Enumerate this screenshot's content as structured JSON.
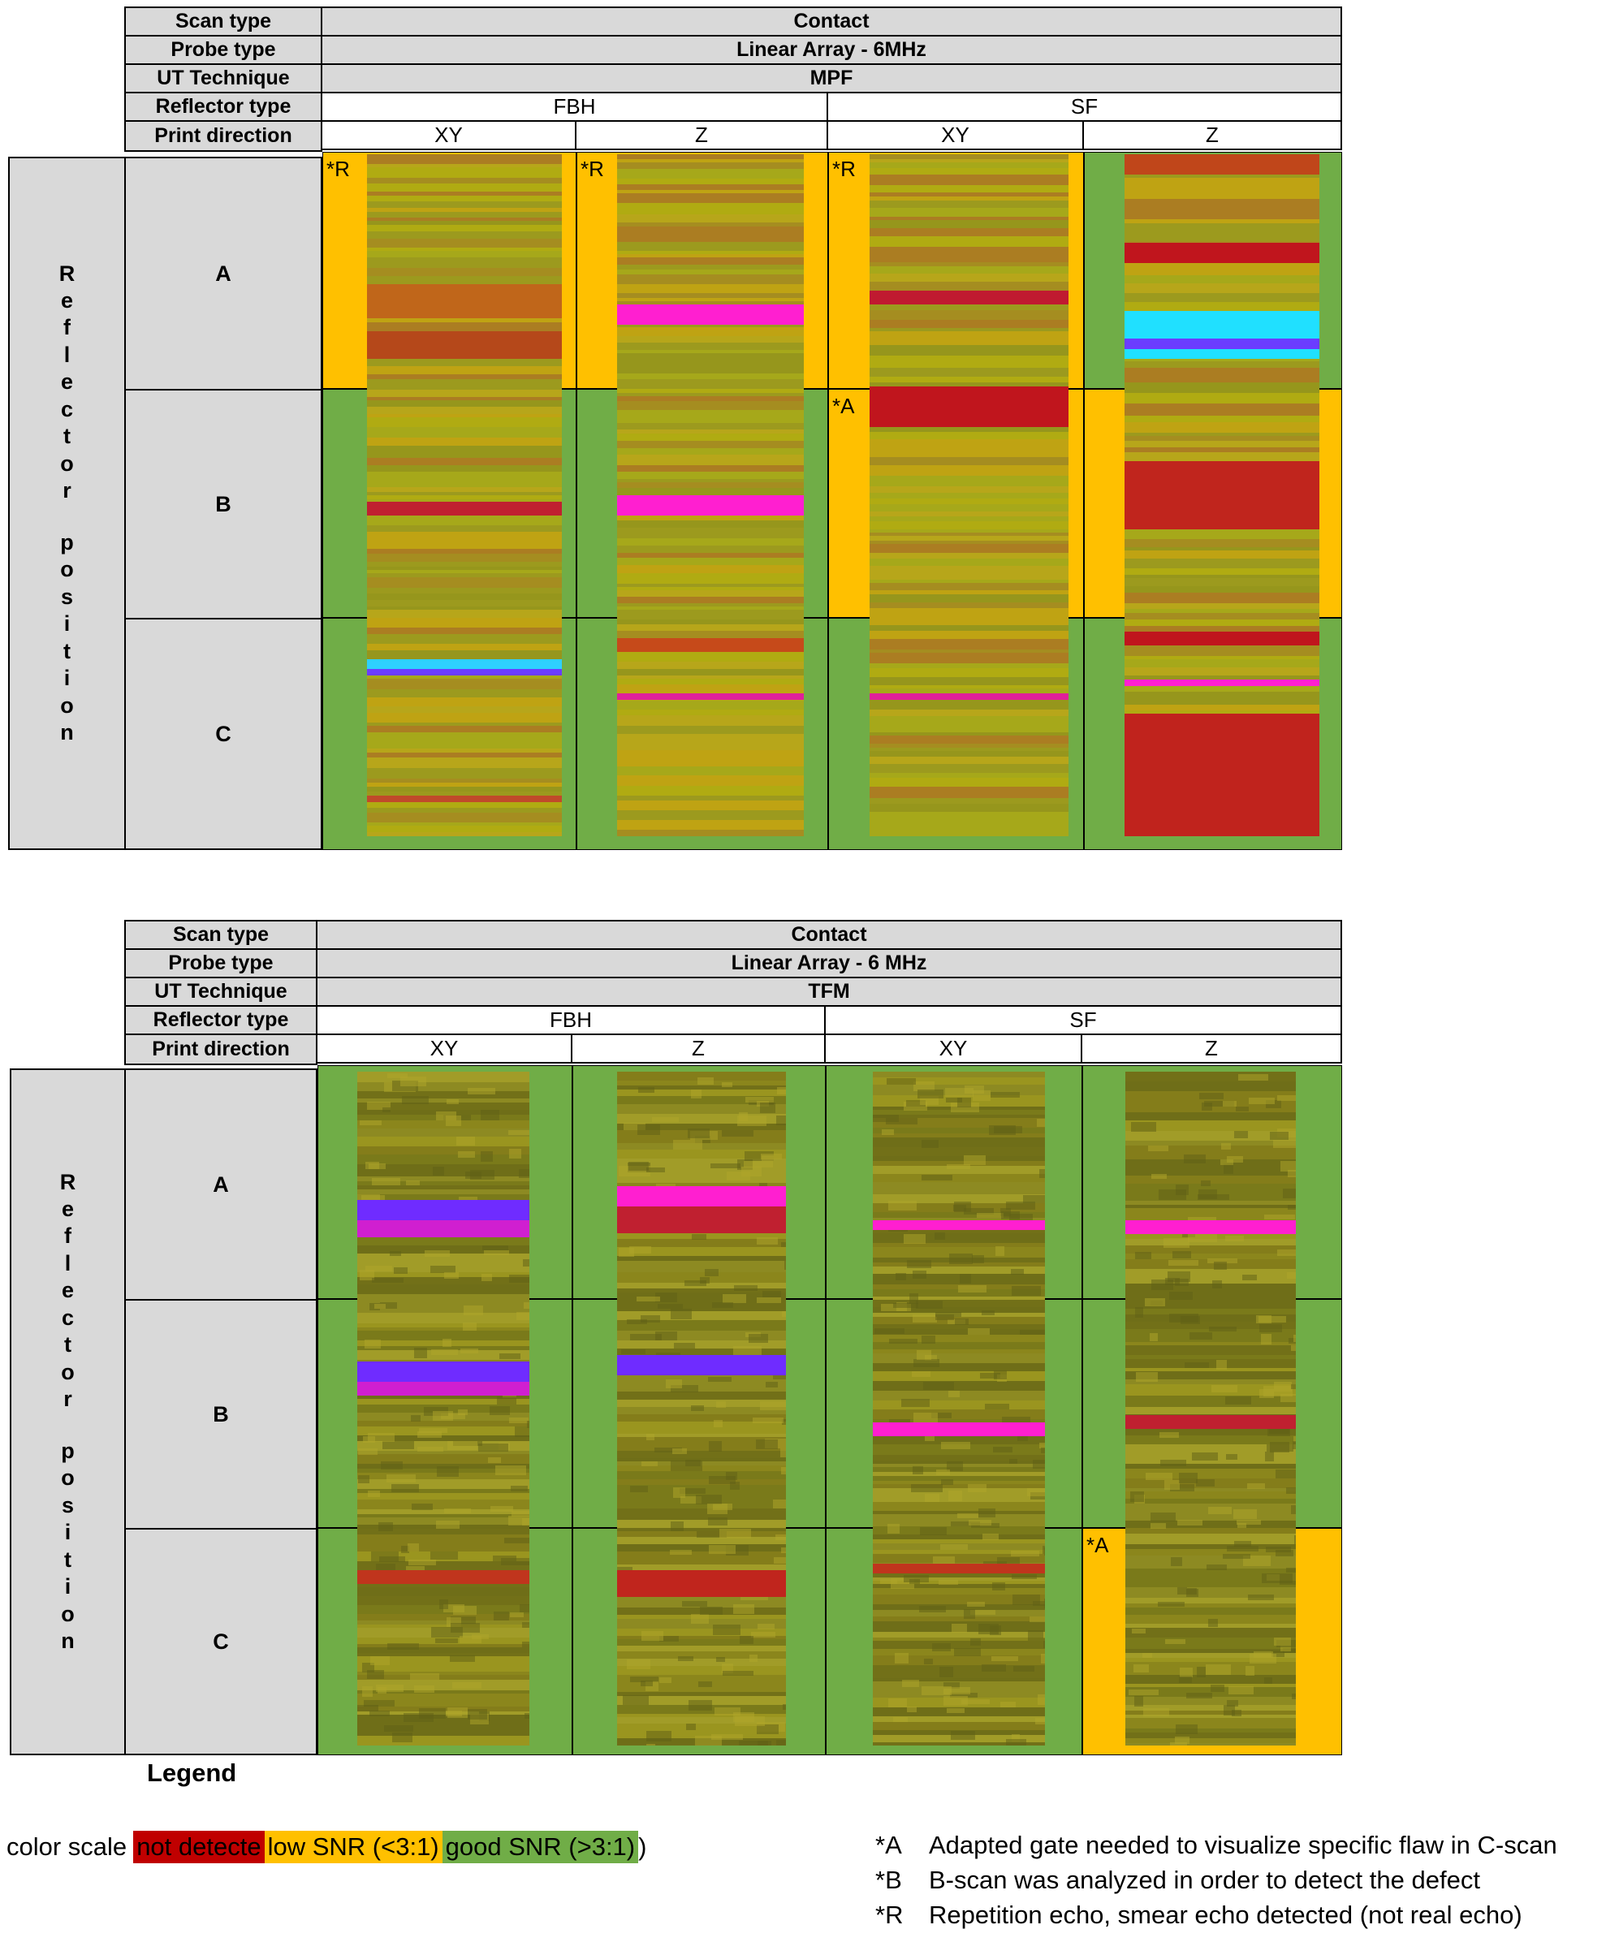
{
  "panels": [
    {
      "id": "mpf",
      "header": {
        "labels": [
          "Scan type",
          "Probe type",
          "UT Technique",
          "Reflector type",
          "Print direction"
        ],
        "scan_type": "Contact",
        "probe_type": "Linear Array - 6MHz",
        "technique": "MPF",
        "reflectors": [
          "FBH",
          "SF"
        ],
        "directions": [
          "XY",
          "Z",
          "XY",
          "Z"
        ]
      },
      "side_label_word1": [
        "R",
        "e",
        "f",
        "l",
        "e",
        "c",
        "t",
        "o",
        "r"
      ],
      "side_label_word2": [
        "p",
        "o",
        "s",
        "i",
        "t",
        "i",
        "o",
        "n"
      ],
      "rows": [
        "A",
        "B",
        "C"
      ],
      "cells": [
        [
          "low SNR (<3:1)",
          "low SNR (<3:1)",
          "low SNR (<3:1)",
          "good SNR (>3:1)"
        ],
        [
          "good SNR (>3:1)",
          "good SNR (>3:1)",
          "low SNR (<3:1)",
          "low SNR (<3:1)"
        ],
        [
          "good SNR (>3:1)",
          "good SNR (>3:1)",
          "good SNR (>3:1)",
          "good SNR (>3:1)"
        ]
      ],
      "notes": [
        {
          "row": 0,
          "col": 0,
          "text": "*R"
        },
        {
          "row": 0,
          "col": 1,
          "text": "*R"
        },
        {
          "row": 0,
          "col": 2,
          "text": "*R"
        },
        {
          "row": 1,
          "col": 2,
          "text": "*A"
        }
      ]
    },
    {
      "id": "tfm",
      "header": {
        "labels": [
          "Scan type",
          "Probe type",
          "UT Technique",
          "Reflector type",
          "Print direction"
        ],
        "scan_type": "Contact",
        "probe_type": "Linear Array - 6 MHz",
        "technique": "TFM",
        "reflectors": [
          "FBH",
          "SF"
        ],
        "directions": [
          "XY",
          "Z",
          "XY",
          "Z"
        ]
      },
      "side_label_word1": [
        "R",
        "e",
        "f",
        "l",
        "e",
        "c",
        "t",
        "o",
        "r"
      ],
      "side_label_word2": [
        "p",
        "o",
        "s",
        "i",
        "t",
        "i",
        "o",
        "n"
      ],
      "rows": [
        "A",
        "B",
        "C"
      ],
      "cells": [
        [
          "good SNR (>3:1)",
          "good SNR (>3:1)",
          "good SNR (>3:1)",
          "good SNR (>3:1)"
        ],
        [
          "good SNR (>3:1)",
          "good SNR (>3:1)",
          "good SNR (>3:1)",
          "good SNR (>3:1)"
        ],
        [
          "good SNR (>3:1)",
          "good SNR (>3:1)",
          "good SNR (>3:1)",
          "low SNR (<3:1)"
        ]
      ],
      "notes": [
        {
          "row": 2,
          "col": 3,
          "text": "*A"
        }
      ]
    }
  ],
  "legend": {
    "title": "Legend",
    "prefix": "color scale",
    "items": [
      {
        "label": "not detecte",
        "color": "#c00000"
      },
      {
        "label": "low SNR (<3:1)",
        "color": "#ffc000"
      },
      {
        "label": "good SNR (>3:1)",
        "color": "#70ad47"
      }
    ],
    "suffix": ")"
  },
  "footnotes": [
    {
      "key": "*A",
      "text": "Adapted gate needed to visualize specific flaw in C-scan"
    },
    {
      "key": "*B",
      "text": "B-scan was analyzed in order to detect the defect"
    },
    {
      "key": "*R",
      "text": "Repetition echo, smear echo detected (not real echo)"
    }
  ],
  "colors": {
    "good": "#70ad47",
    "low": "#ffc000",
    "not_detected": "#c00000",
    "header_fill": "#d9d9d9"
  }
}
